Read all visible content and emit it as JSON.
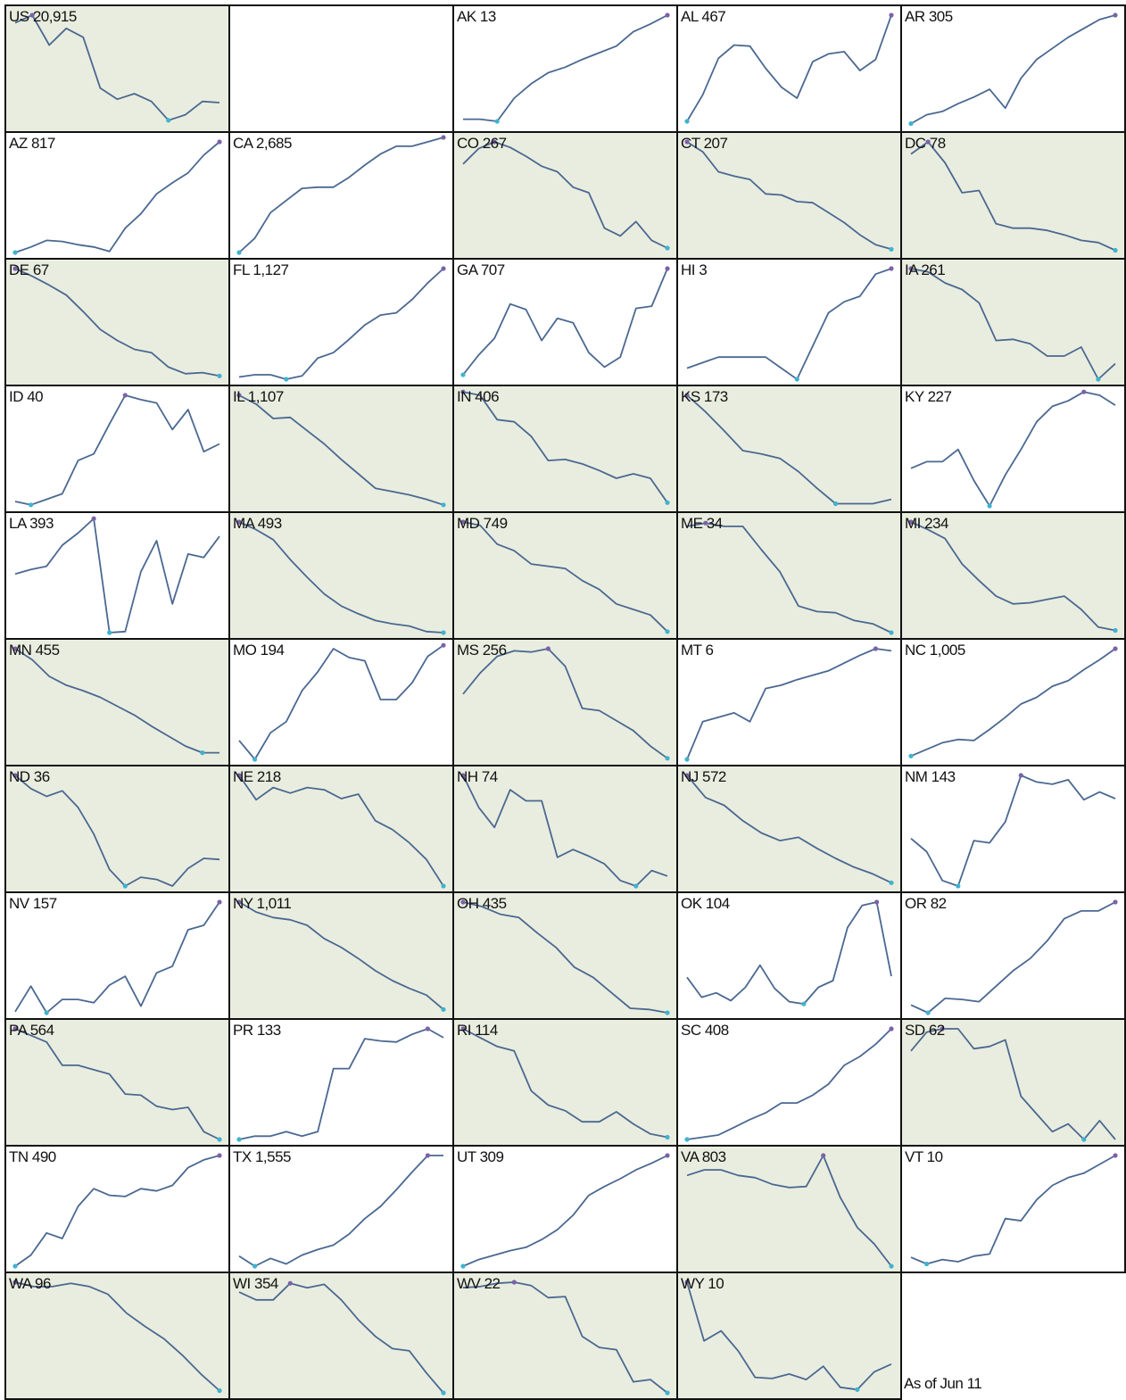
{
  "footnote": "As of Jun 11",
  "colors": {
    "line": "#4a6891",
    "declining_fill": "#e9eddf",
    "rising_fill": "#ffffff",
    "max_marker": "#7b62a8",
    "min_marker": "#3fb3cf",
    "border": "#111111"
  },
  "chart_data": [
    {
      "type": "line",
      "label": "US 20,915",
      "state": "US",
      "value": "20,915",
      "trend": "declining",
      "values": [
        93,
        100,
        73,
        88,
        80,
        34,
        24,
        29,
        22,
        5,
        10,
        22,
        21
      ]
    },
    {
      "type": "line",
      "label": "AK 13",
      "state": "AK",
      "value": "13",
      "trend": "rising",
      "values": [
        6,
        6,
        4,
        25,
        38,
        48,
        53,
        60,
        66,
        72,
        85,
        92,
        100
      ]
    },
    {
      "type": "line",
      "label": "AL 467",
      "state": "AL",
      "value": "467",
      "trend": "rising",
      "values": [
        4,
        28,
        61,
        73,
        72,
        52,
        35,
        25,
        58,
        65,
        67,
        50,
        60,
        100
      ]
    },
    {
      "type": "line",
      "label": "AR 305",
      "state": "AR",
      "value": "305",
      "trend": "rising",
      "values": [
        2,
        10,
        13,
        20,
        26,
        33,
        16,
        43,
        60,
        70,
        80,
        88,
        96,
        100
      ]
    },
    {
      "type": "line",
      "label": "AZ 817",
      "state": "AZ",
      "value": "817",
      "trend": "rising",
      "values": [
        0,
        5,
        11,
        10,
        7,
        5,
        1,
        22,
        35,
        53,
        63,
        72,
        88,
        100
      ]
    },
    {
      "type": "line",
      "label": "CA 2,685",
      "state": "CA",
      "value": "2,685",
      "trend": "rising",
      "values": [
        0,
        13,
        36,
        47,
        58,
        59,
        59,
        68,
        79,
        89,
        96,
        96,
        100,
        104
      ]
    },
    {
      "type": "line",
      "label": "CO 267",
      "state": "CO",
      "value": "267",
      "trend": "declining",
      "values": [
        80,
        94,
        100,
        95,
        87,
        78,
        73,
        59,
        54,
        22,
        15,
        28,
        11,
        4
      ]
    },
    {
      "type": "line",
      "label": "CT 207",
      "state": "CT",
      "value": "207",
      "trend": "declining",
      "values": [
        100,
        91,
        73,
        69,
        66,
        53,
        52,
        46,
        45,
        36,
        27,
        16,
        7,
        3
      ]
    },
    {
      "type": "line",
      "label": "DC 78",
      "state": "DC",
      "value": "78",
      "trend": "declining",
      "values": [
        89,
        100,
        81,
        54,
        56,
        26,
        22,
        22,
        20,
        16,
        11,
        9,
        2
      ]
    },
    {
      "type": "line",
      "label": "DE 67",
      "state": "DE",
      "value": "67",
      "trend": "declining",
      "values": [
        100,
        93,
        85,
        76,
        61,
        45,
        35,
        27,
        24,
        11,
        5,
        6,
        3
      ]
    },
    {
      "type": "line",
      "label": "FL 1,127",
      "state": "FL",
      "value": "1,127",
      "trend": "rising",
      "values": [
        2,
        4,
        4,
        0,
        3,
        19,
        24,
        36,
        49,
        58,
        60,
        72,
        87,
        100
      ]
    },
    {
      "type": "line",
      "label": "GA 707",
      "state": "GA",
      "value": "707",
      "trend": "rising",
      "values": [
        4,
        22,
        37,
        68,
        63,
        35,
        55,
        51,
        24,
        11,
        20,
        64,
        66,
        100
      ]
    },
    {
      "type": "line",
      "label": "HI 3",
      "state": "HI",
      "value": "3",
      "trend": "rising",
      "values": [
        10,
        15,
        20,
        20,
        20,
        20,
        10,
        0,
        30,
        60,
        70,
        75,
        95,
        100
      ]
    },
    {
      "type": "line",
      "label": "IA 261",
      "state": "IA",
      "value": "261",
      "trend": "declining",
      "values": [
        100,
        97,
        87,
        81,
        69,
        35,
        36,
        32,
        21,
        21,
        29,
        0,
        14
      ]
    },
    {
      "type": "line",
      "label": "ID 40",
      "state": "ID",
      "value": "40",
      "trend": "rising",
      "values": [
        4,
        1,
        6,
        11,
        41,
        47,
        74,
        100,
        96,
        93,
        69,
        87,
        49,
        56
      ]
    },
    {
      "type": "line",
      "label": "IL 1,107",
      "state": "IL",
      "value": "1,107",
      "trend": "declining",
      "values": [
        100,
        92,
        79,
        80,
        68,
        56,
        42,
        29,
        16,
        13,
        10,
        6,
        1
      ]
    },
    {
      "type": "line",
      "label": "IN 406",
      "state": "IN",
      "value": "406",
      "trend": "declining",
      "values": [
        103,
        100,
        78,
        76,
        63,
        41,
        42,
        38,
        32,
        25,
        29,
        25,
        3
      ]
    },
    {
      "type": "line",
      "label": "KS 173",
      "state": "KS",
      "value": "173",
      "trend": "declining",
      "values": [
        100,
        85,
        68,
        50,
        47,
        43,
        31,
        16,
        2,
        2,
        2,
        6
      ]
    },
    {
      "type": "line",
      "label": "KY 227",
      "state": "KY",
      "value": "227",
      "trend": "rising",
      "values": [
        34,
        40,
        40,
        51,
        23,
        0,
        28,
        51,
        76,
        90,
        95,
        103,
        100,
        91
      ]
    },
    {
      "type": "line",
      "label": "LA 393",
      "state": "LA",
      "value": "393",
      "trend": "rising",
      "values": [
        53,
        57,
        60,
        79,
        90,
        103,
        0,
        1,
        55,
        83,
        26,
        71,
        68,
        87
      ]
    },
    {
      "type": "line",
      "label": "MA 493",
      "state": "MA",
      "value": "493",
      "trend": "declining",
      "values": [
        100,
        93,
        84,
        66,
        50,
        35,
        24,
        17,
        11,
        8,
        6,
        1,
        0
      ]
    },
    {
      "type": "line",
      "label": "MD 749",
      "state": "MD",
      "value": "749",
      "trend": "declining",
      "values": [
        100,
        97,
        80,
        74,
        62,
        60,
        58,
        47,
        39,
        26,
        21,
        16,
        1
      ]
    },
    {
      "type": "line",
      "label": "ME 34",
      "state": "ME",
      "value": "34",
      "trend": "declining",
      "values": [
        96,
        99,
        96,
        96,
        75,
        55,
        24,
        19,
        18,
        11,
        8,
        0
      ]
    },
    {
      "type": "line",
      "label": "MI 234",
      "state": "MI",
      "value": "234",
      "trend": "declining",
      "values": [
        100,
        93,
        85,
        62,
        47,
        33,
        26,
        27,
        30,
        33,
        21,
        5,
        2
      ]
    },
    {
      "type": "line",
      "label": "MN 455",
      "state": "MN",
      "value": "455",
      "trend": "declining",
      "values": [
        100,
        90,
        75,
        67,
        62,
        56,
        48,
        40,
        30,
        21,
        12,
        6,
        6
      ]
    },
    {
      "type": "line",
      "label": "MO 194",
      "state": "MO",
      "value": "194",
      "trend": "rising",
      "values": [
        17,
        0,
        24,
        34,
        62,
        79,
        100,
        92,
        89,
        54,
        54,
        69,
        93,
        103
      ]
    },
    {
      "type": "line",
      "label": "MS 256",
      "state": "MS",
      "value": "256",
      "trend": "declining",
      "values": [
        59,
        78,
        93,
        98,
        97,
        100,
        84,
        46,
        44,
        35,
        26,
        12,
        1
      ]
    },
    {
      "type": "line",
      "label": "MT 6",
      "state": "MT",
      "value": "6",
      "trend": "rising",
      "values": [
        0,
        34,
        38,
        42,
        34,
        64,
        67,
        72,
        76,
        80,
        87,
        94,
        100,
        98
      ]
    },
    {
      "type": "line",
      "label": "NC 1,005",
      "state": "NC",
      "value": "1,005",
      "trend": "rising",
      "values": [
        3,
        9,
        15,
        18,
        17,
        27,
        38,
        50,
        56,
        66,
        71,
        81,
        90,
        100
      ]
    },
    {
      "type": "line",
      "label": "ND 36",
      "state": "ND",
      "value": "36",
      "trend": "declining",
      "values": [
        100,
        88,
        81,
        86,
        71,
        47,
        15,
        0,
        8,
        6,
        0,
        16,
        25,
        24
      ]
    },
    {
      "type": "line",
      "label": "NE 218",
      "state": "NE",
      "value": "218",
      "trend": "declining",
      "values": [
        100,
        78,
        89,
        84,
        89,
        87,
        79,
        83,
        59,
        51,
        39,
        24,
        0
      ]
    },
    {
      "type": "line",
      "label": "NH 74",
      "state": "NH",
      "value": "74",
      "trend": "declining",
      "values": [
        100,
        71,
        53,
        87,
        77,
        77,
        26,
        33,
        27,
        20,
        5,
        0,
        14,
        9
      ]
    },
    {
      "type": "line",
      "label": "NJ 572",
      "state": "NJ",
      "value": "572",
      "trend": "declining",
      "values": [
        100,
        80,
        73,
        59,
        48,
        41,
        44,
        34,
        25,
        17,
        11,
        3
      ]
    },
    {
      "type": "line",
      "label": "NM 143",
      "state": "NM",
      "value": "143",
      "trend": "rising",
      "values": [
        43,
        31,
        5,
        0,
        41,
        39,
        58,
        100,
        94,
        92,
        96,
        78,
        85,
        79
      ]
    },
    {
      "type": "line",
      "label": "NV 157",
      "state": "NV",
      "value": "157",
      "trend": "rising",
      "values": [
        1,
        24,
        0,
        12,
        12,
        9,
        25,
        33,
        6,
        36,
        42,
        75,
        79,
        100
      ]
    },
    {
      "type": "line",
      "label": "NY 1,011",
      "state": "NY",
      "value": "1,011",
      "trend": "declining",
      "values": [
        100,
        91,
        86,
        84,
        79,
        67,
        59,
        49,
        38,
        29,
        22,
        16,
        3
      ]
    },
    {
      "type": "line",
      "label": "OH 435",
      "state": "OH",
      "value": "435",
      "trend": "declining",
      "values": [
        100,
        96,
        89,
        86,
        72,
        59,
        41,
        32,
        18,
        4,
        3,
        0
      ]
    },
    {
      "type": "line",
      "label": "OK 104",
      "state": "OK",
      "value": "104",
      "trend": "rising",
      "values": [
        32,
        14,
        18,
        11,
        23,
        43,
        22,
        10,
        8,
        23,
        29,
        77,
        97,
        100,
        33
      ]
    },
    {
      "type": "line",
      "label": "OR 82",
      "state": "OR",
      "value": "82",
      "trend": "rising",
      "values": [
        7,
        0,
        13,
        12,
        10,
        24,
        38,
        49,
        65,
        85,
        92,
        92,
        100
      ]
    },
    {
      "type": "line",
      "label": "PA 564",
      "state": "PA",
      "value": "564",
      "trend": "declining",
      "values": [
        100,
        94,
        88,
        67,
        67,
        63,
        59,
        41,
        40,
        30,
        27,
        29,
        7,
        0
      ]
    },
    {
      "type": "line",
      "label": "PR 133",
      "state": "PR",
      "value": "133",
      "trend": "rising",
      "values": [
        0,
        3,
        3,
        7,
        3,
        7,
        64,
        64,
        91,
        89,
        88,
        95,
        100,
        92
      ]
    },
    {
      "type": "line",
      "label": "RI 114",
      "state": "RI",
      "value": "114",
      "trend": "declining",
      "values": [
        100,
        92,
        84,
        80,
        44,
        31,
        26,
        16,
        16,
        25,
        14,
        5,
        2
      ]
    },
    {
      "type": "line",
      "label": "SC 408",
      "state": "SC",
      "value": "408",
      "trend": "rising",
      "values": [
        0,
        2,
        4,
        11,
        18,
        24,
        33,
        33,
        40,
        50,
        67,
        75,
        86,
        100
      ]
    },
    {
      "type": "line",
      "label": "SD 62",
      "state": "SD",
      "value": "62",
      "trend": "declining",
      "values": [
        80,
        97,
        100,
        100,
        82,
        84,
        90,
        39,
        23,
        7,
        14,
        0,
        17,
        0
      ]
    },
    {
      "type": "line",
      "label": "TN 490",
      "state": "TN",
      "value": "490",
      "trend": "rising",
      "values": [
        0,
        10,
        30,
        25,
        54,
        70,
        64,
        63,
        70,
        68,
        73,
        89,
        96,
        100
      ]
    },
    {
      "type": "line",
      "label": "TX 1,555",
      "state": "TX",
      "value": "1,555",
      "trend": "rising",
      "values": [
        9,
        0,
        7,
        2,
        10,
        15,
        19,
        29,
        43,
        54,
        69,
        85,
        100,
        100
      ]
    },
    {
      "type": "line",
      "label": "UT 309",
      "state": "UT",
      "value": "309",
      "trend": "rising",
      "values": [
        0,
        6,
        10,
        14,
        17,
        24,
        33,
        46,
        64,
        72,
        79,
        87,
        93,
        100
      ]
    },
    {
      "type": "line",
      "label": "VA 803",
      "state": "VA",
      "value": "803",
      "trend": "declining",
      "values": [
        82,
        87,
        87,
        82,
        80,
        74,
        71,
        72,
        100,
        62,
        35,
        20,
        0
      ]
    },
    {
      "type": "line",
      "label": "VT 10",
      "state": "VT",
      "value": "10",
      "trend": "rising",
      "values": [
        8,
        2,
        6,
        4,
        9,
        11,
        43,
        41,
        60,
        73,
        80,
        84,
        92,
        100
      ]
    },
    {
      "type": "line",
      "label": "WA 96",
      "state": "WA",
      "value": "96",
      "trend": "declining",
      "values": [
        100,
        96,
        96,
        99,
        96,
        89,
        72,
        60,
        49,
        34,
        17,
        2
      ]
    },
    {
      "type": "line",
      "label": "WI 354",
      "state": "WI",
      "value": "354",
      "trend": "declining",
      "values": [
        91,
        84,
        84,
        99,
        95,
        98,
        84,
        66,
        51,
        40,
        38,
        18,
        0
      ]
    },
    {
      "type": "line",
      "label": "WV 22",
      "state": "WV",
      "value": "22",
      "trend": "declining",
      "values": [
        95,
        96,
        99,
        100,
        97,
        86,
        87,
        51,
        41,
        39,
        10,
        12,
        0
      ]
    },
    {
      "type": "line",
      "label": "WY 10",
      "state": "WY",
      "value": "10",
      "trend": "declining",
      "values": [
        100,
        47,
        56,
        38,
        14,
        13,
        17,
        12,
        24,
        5,
        3,
        19,
        26
      ]
    }
  ]
}
